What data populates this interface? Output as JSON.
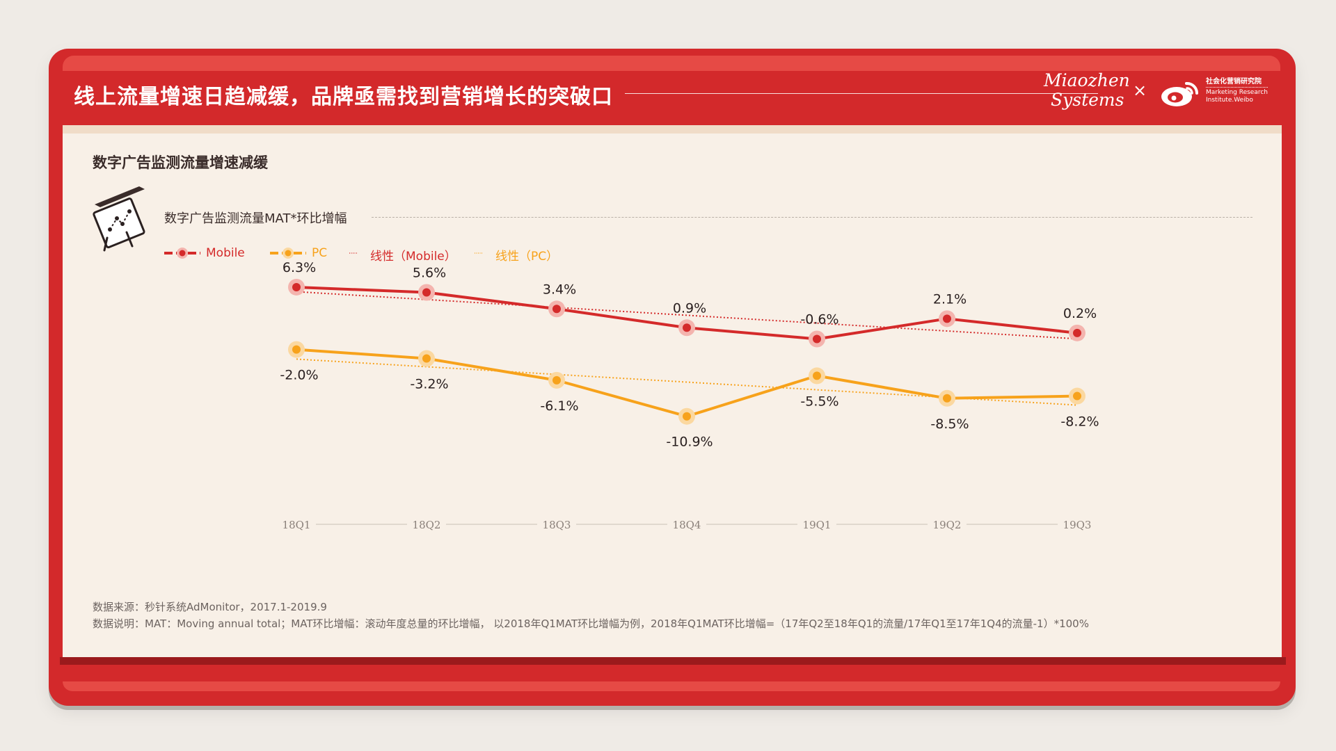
{
  "header": {
    "title": "线上流量增速日趋减缓，品牌亟需找到营销增长的突破口",
    "logo_miaozhen_line1": "Miaozhen",
    "logo_miaozhen_line2": "Systems",
    "separator": "×",
    "weibo_cn": "社会化营销研究院",
    "weibo_en_line1": "Marketing Research",
    "weibo_en_line2": "Institute.Weibo"
  },
  "section": {
    "subtitle": "数字广告监测流量增速减缓",
    "board_icon": "presentation-board-icon"
  },
  "chart_data": {
    "type": "line",
    "title": "数字广告监测流量MAT*环比增幅",
    "categories": [
      "18Q1",
      "18Q2",
      "18Q3",
      "18Q4",
      "19Q1",
      "19Q2",
      "19Q3"
    ],
    "series": [
      {
        "name": "Mobile",
        "values": [
          6.3,
          5.6,
          3.4,
          0.9,
          -0.6,
          2.1,
          0.2
        ],
        "labels": [
          "6.3%",
          "5.6%",
          "3.4%",
          "0.9%",
          "-0.6%",
          "2.1%",
          "0.2%"
        ],
        "color": "#d42a2a"
      },
      {
        "name": "PC",
        "values": [
          -2.0,
          -3.2,
          -6.1,
          -10.9,
          -5.5,
          -8.5,
          -8.2
        ],
        "labels": [
          "-2.0%",
          "-3.2%",
          "-6.1%",
          "-10.9%",
          "-5.5%",
          "-8.5%",
          "-8.2%"
        ],
        "color": "#f7a21b"
      }
    ],
    "trendlines": [
      {
        "name": "线性（Mobile）",
        "of": "Mobile",
        "style": "dotted",
        "color": "#d42a2a"
      },
      {
        "name": "线性（PC）",
        "of": "PC",
        "style": "dotted",
        "color": "#f7a21b"
      }
    ],
    "legend_position": "top-left",
    "grid": false
  },
  "footnotes": {
    "source": "数据来源：秒针系统AdMonitor，2017.1-2019.9",
    "explanation": "数据说明：MAT：Moving annual total；MAT环比增幅：滚动年度总量的环比增幅， 以2018年Q1MAT环比增幅为例，2018年Q1MAT环比增幅=（17年Q2至18年Q1的流量/17年Q1至17年1Q4的流量-1）*100%"
  }
}
